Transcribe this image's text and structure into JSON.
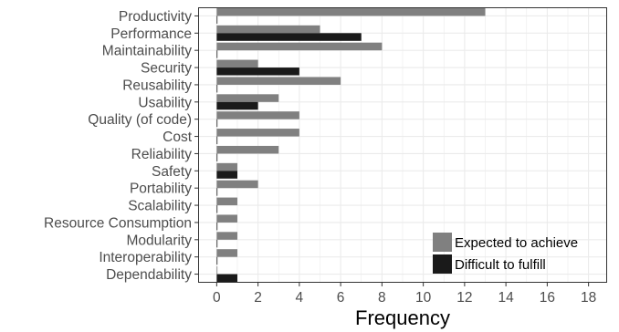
{
  "chart_data": {
    "type": "bar",
    "orientation": "horizontal",
    "title": "",
    "xlabel": "Frequency",
    "ylabel": "",
    "xlim": [
      -0.9,
      18.9
    ],
    "xticks": [
      0,
      2,
      4,
      6,
      8,
      10,
      12,
      14,
      16,
      18
    ],
    "grid": true,
    "legend_position": "bottom-right",
    "categories": [
      "Productivity",
      "Performance",
      "Maintainability",
      "Security",
      "Reusability",
      "Usability",
      "Quality (of code)",
      "Cost",
      "Reliability",
      "Safety",
      "Portability",
      "Scalability",
      "Resource Consumption",
      "Modularity",
      "Interoperability",
      "Dependability"
    ],
    "series": [
      {
        "name": "Expected to achieve",
        "color": "#808080",
        "values": [
          13,
          5,
          8,
          2,
          6,
          3,
          4,
          4,
          3,
          1,
          2,
          1,
          1,
          1,
          1,
          0
        ]
      },
      {
        "name": "Difficult to fulfill",
        "color": "#1a1a1a",
        "values": [
          0,
          7,
          0,
          4,
          0,
          2,
          0,
          0,
          0,
          1,
          0,
          0,
          0,
          0,
          0,
          1
        ]
      }
    ]
  }
}
